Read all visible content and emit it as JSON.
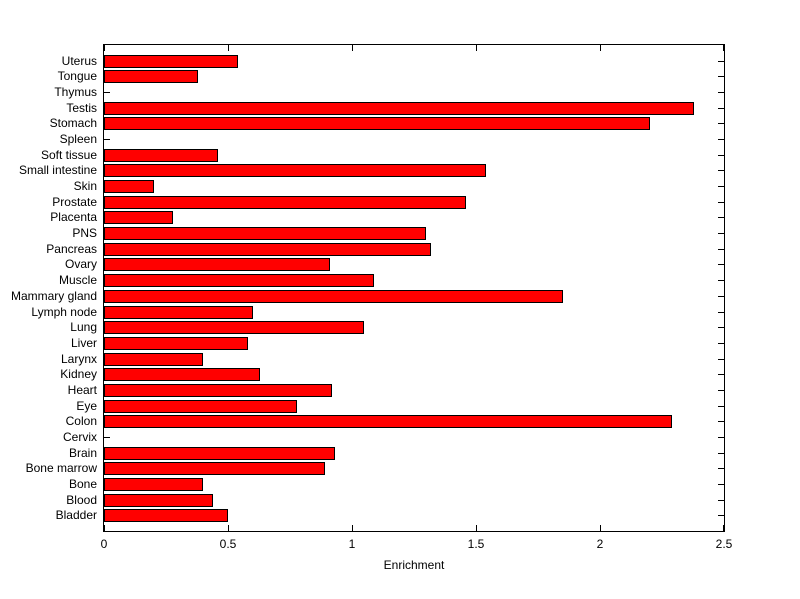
{
  "chart_data": {
    "type": "bar",
    "orientation": "horizontal",
    "title": "",
    "xlabel": "Enrichment",
    "ylabel": "",
    "order": "top-to-bottom",
    "categories": [
      "Uterus",
      "Tongue",
      "Thymus",
      "Testis",
      "Stomach",
      "Spleen",
      "Soft tissue",
      "Small intestine",
      "Skin",
      "Prostate",
      "Placenta",
      "PNS",
      "Pancreas",
      "Ovary",
      "Muscle",
      "Mammary gland",
      "Lymph node",
      "Lung",
      "Liver",
      "Larynx",
      "Kidney",
      "Heart",
      "Eye",
      "Colon",
      "Cervix",
      "Brain",
      "Bone marrow",
      "Bone",
      "Blood",
      "Bladder"
    ],
    "values": [
      0.54,
      0.38,
      0,
      2.38,
      2.2,
      0,
      0.46,
      1.54,
      0.2,
      1.46,
      0.28,
      1.3,
      1.32,
      0.91,
      1.09,
      1.85,
      0.6,
      1.05,
      0.58,
      0.4,
      0.63,
      0.92,
      0.78,
      2.29,
      0,
      0.93,
      0.89,
      0.4,
      0.44,
      0.5
    ],
    "xlim": [
      0,
      2.5
    ],
    "xticks": [
      0,
      0.5,
      1,
      1.5,
      2,
      2.5
    ],
    "xtick_labels": [
      "0",
      "0.5",
      "1",
      "1.5",
      "2",
      "2.5"
    ],
    "grid": false,
    "legend": false,
    "colors": {
      "bar_fill": "#ff0000",
      "bar_edge": "#000000",
      "axis": "#000000",
      "background": "#ffffff",
      "text": "#000000"
    }
  }
}
